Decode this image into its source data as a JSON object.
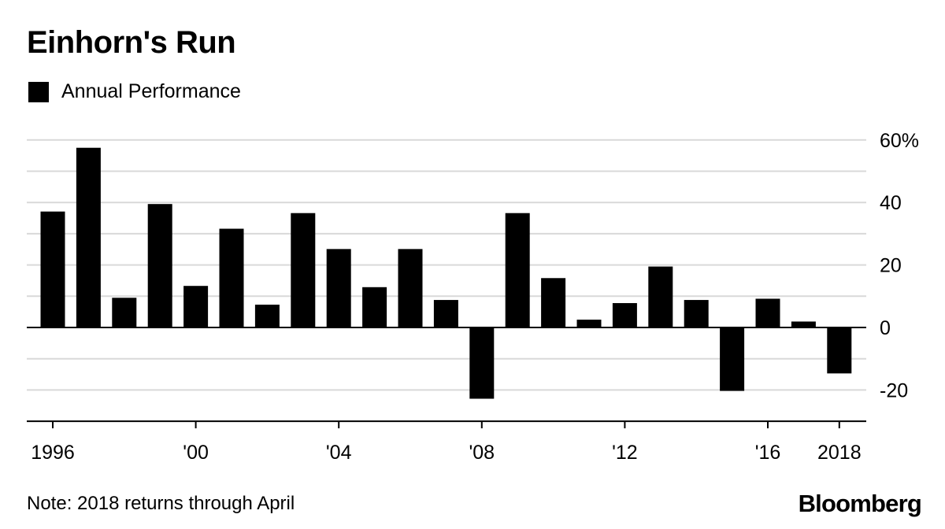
{
  "chart_data": {
    "type": "bar",
    "title": "Einhorn's Run",
    "legend": [
      "Annual Performance"
    ],
    "legend_position": "top-left",
    "categories": [
      "1996",
      "1997",
      "1998",
      "1999",
      "2000",
      "2001",
      "2002",
      "2003",
      "2004",
      "2005",
      "2006",
      "2007",
      "2008",
      "2009",
      "2010",
      "2011",
      "2012",
      "2013",
      "2014",
      "2015",
      "2016",
      "2017",
      "2018"
    ],
    "series": [
      {
        "name": "Annual Performance",
        "values": [
          37.1,
          57.5,
          9.5,
          39.5,
          13.3,
          31.6,
          7.3,
          36.6,
          25.1,
          12.9,
          25.1,
          8.8,
          -22.8,
          36.6,
          15.8,
          2.5,
          7.8,
          19.5,
          8.8,
          -20.3,
          9.2,
          1.9,
          -14.7
        ],
        "color": "#000000"
      }
    ],
    "y_ticks": [
      {
        "value": 60,
        "label": "60%"
      },
      {
        "value": 40,
        "label": "40"
      },
      {
        "value": 20,
        "label": "20"
      },
      {
        "value": 0,
        "label": "0"
      },
      {
        "value": -20,
        "label": "-20"
      }
    ],
    "x_ticks": [
      {
        "category": "1996",
        "label": "1996"
      },
      {
        "category": "2000",
        "label": "'00"
      },
      {
        "category": "2004",
        "label": "'04"
      },
      {
        "category": "2008",
        "label": "'08"
      },
      {
        "category": "2012",
        "label": "'12"
      },
      {
        "category": "2016",
        "label": "'16"
      },
      {
        "category": "2018",
        "label": "2018"
      }
    ],
    "ylim": [
      -30,
      60
    ],
    "grid_step": 10,
    "grid": true,
    "y_axis_side": "right",
    "note": "Note: 2018 returns through April",
    "source": "Bloomberg"
  },
  "colors": {
    "bars": "#000000",
    "grid": "#d9d9d9",
    "axis": "#000000"
  }
}
